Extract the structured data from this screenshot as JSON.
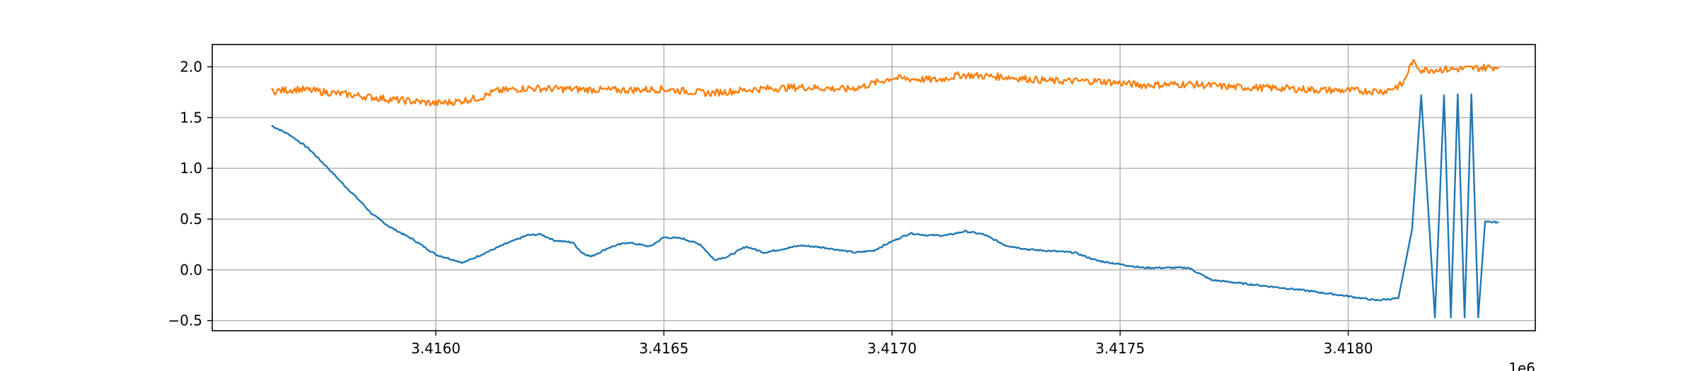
{
  "chart_data": {
    "type": "line",
    "title": "",
    "xlabel": "",
    "ylabel": "",
    "x_offset_label": "1e6",
    "x_tick_labels": [
      "3.4160",
      "3.4165",
      "3.4170",
      "3.4175",
      "3.4180"
    ],
    "x_ticks": [
      3416000,
      3416500,
      3417000,
      3417500,
      3418000
    ],
    "y_tick_labels": [
      "−0.5",
      "0.0",
      "0.5",
      "1.0",
      "1.5",
      "2.0"
    ],
    "y_ticks": [
      -0.5,
      0.0,
      0.5,
      1.0,
      1.5,
      2.0
    ],
    "xlim": [
      3415510,
      3418410
    ],
    "ylim": [
      -0.6,
      2.22
    ],
    "grid": true,
    "legend": "none",
    "series": [
      {
        "color": "#1f77b4",
        "x": [
          3415640,
          3415680,
          3415720,
          3415760,
          3415800,
          3415840,
          3415860,
          3415900,
          3415950,
          3416000,
          3416060,
          3416100,
          3416150,
          3416200,
          3416230,
          3416260,
          3416300,
          3416320,
          3416340,
          3416380,
          3416420,
          3416470,
          3416500,
          3416540,
          3416580,
          3416610,
          3416640,
          3416680,
          3416720,
          3416800,
          3416850,
          3416920,
          3416960,
          3417000,
          3417040,
          3417080,
          3417120,
          3417160,
          3417200,
          3417250,
          3417300,
          3417400,
          3417450,
          3417550,
          3417650,
          3417700,
          3417800,
          3417900,
          3418000,
          3418060,
          3418110,
          3418140,
          3418160,
          3418190,
          3418210,
          3418225,
          3418240,
          3418255,
          3418270,
          3418285,
          3418300,
          3418315,
          3418330
        ],
        "y": [
          1.42,
          1.33,
          1.2,
          1.02,
          0.83,
          0.65,
          0.55,
          0.42,
          0.3,
          0.15,
          0.07,
          0.15,
          0.25,
          0.34,
          0.35,
          0.29,
          0.27,
          0.17,
          0.13,
          0.22,
          0.27,
          0.23,
          0.32,
          0.31,
          0.25,
          0.1,
          0.13,
          0.23,
          0.17,
          0.24,
          0.22,
          0.17,
          0.19,
          0.28,
          0.36,
          0.34,
          0.34,
          0.38,
          0.35,
          0.24,
          0.2,
          0.17,
          0.09,
          0.02,
          0.02,
          -0.1,
          -0.15,
          -0.2,
          -0.26,
          -0.3,
          -0.28,
          0.4,
          1.72,
          -0.47,
          1.72,
          -0.47,
          1.73,
          -0.47,
          1.73,
          -0.47,
          0.47,
          0.47,
          0.47
        ]
      },
      {
        "color": "#ff7f0e",
        "x": [
          3415640,
          3415700,
          3415800,
          3415900,
          3416000,
          3416050,
          3416100,
          3416130,
          3416200,
          3416300,
          3416400,
          3416500,
          3416600,
          3416700,
          3416800,
          3416900,
          3416930,
          3417000,
          3417100,
          3417150,
          3417250,
          3417350,
          3417450,
          3417550,
          3417650,
          3417750,
          3417850,
          3417950,
          3418080,
          3418120,
          3418140,
          3418160,
          3418250,
          3418330
        ],
        "y": [
          1.76,
          1.78,
          1.73,
          1.68,
          1.64,
          1.66,
          1.7,
          1.76,
          1.79,
          1.78,
          1.77,
          1.78,
          1.74,
          1.78,
          1.8,
          1.78,
          1.8,
          1.89,
          1.87,
          1.92,
          1.9,
          1.86,
          1.86,
          1.82,
          1.83,
          1.8,
          1.79,
          1.77,
          1.76,
          1.83,
          2.05,
          1.97,
          1.98,
          2.0
        ]
      }
    ]
  }
}
